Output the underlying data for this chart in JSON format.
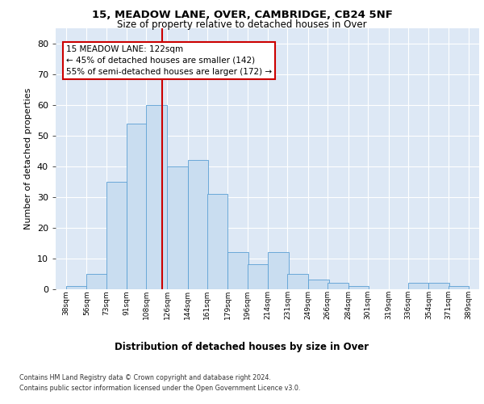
{
  "title_line1": "15, MEADOW LANE, OVER, CAMBRIDGE, CB24 5NF",
  "title_line2": "Size of property relative to detached houses in Over",
  "xlabel": "Distribution of detached houses by size in Over",
  "ylabel": "Number of detached properties",
  "bar_left_edges": [
    38,
    56,
    73,
    91,
    108,
    126,
    144,
    161,
    179,
    196,
    214,
    231,
    249,
    266,
    284,
    301,
    319,
    336,
    354,
    371
  ],
  "bar_heights": [
    1,
    5,
    35,
    54,
    60,
    40,
    42,
    31,
    12,
    8,
    12,
    5,
    3,
    2,
    1,
    0,
    0,
    2,
    2,
    1
  ],
  "bin_width": 18,
  "bar_color": "#c9ddf0",
  "bar_edge_color": "#5a9fd4",
  "vline_x": 122,
  "vline_color": "#cc0000",
  "ylim": [
    0,
    85
  ],
  "yticks": [
    0,
    10,
    20,
    30,
    40,
    50,
    60,
    70,
    80
  ],
  "xlim": [
    29,
    398
  ],
  "tick_labels": [
    "38sqm",
    "56sqm",
    "73sqm",
    "91sqm",
    "108sqm",
    "126sqm",
    "144sqm",
    "161sqm",
    "179sqm",
    "196sqm",
    "214sqm",
    "231sqm",
    "249sqm",
    "266sqm",
    "284sqm",
    "301sqm",
    "319sqm",
    "336sqm",
    "354sqm",
    "371sqm",
    "389sqm"
  ],
  "tick_positions": [
    38,
    56,
    73,
    91,
    108,
    126,
    144,
    161,
    179,
    196,
    214,
    231,
    249,
    266,
    284,
    301,
    319,
    336,
    354,
    371,
    389
  ],
  "annotation_text": "15 MEADOW LANE: 122sqm\n← 45% of detached houses are smaller (142)\n55% of semi-detached houses are larger (172) →",
  "annotation_box_color": "#ffffff",
  "annotation_box_edge": "#cc0000",
  "footer_line1": "Contains HM Land Registry data © Crown copyright and database right 2024.",
  "footer_line2": "Contains public sector information licensed under the Open Government Licence v3.0.",
  "bg_color": "#dde8f5",
  "grid_color": "#ffffff",
  "figure_bg": "#ffffff"
}
